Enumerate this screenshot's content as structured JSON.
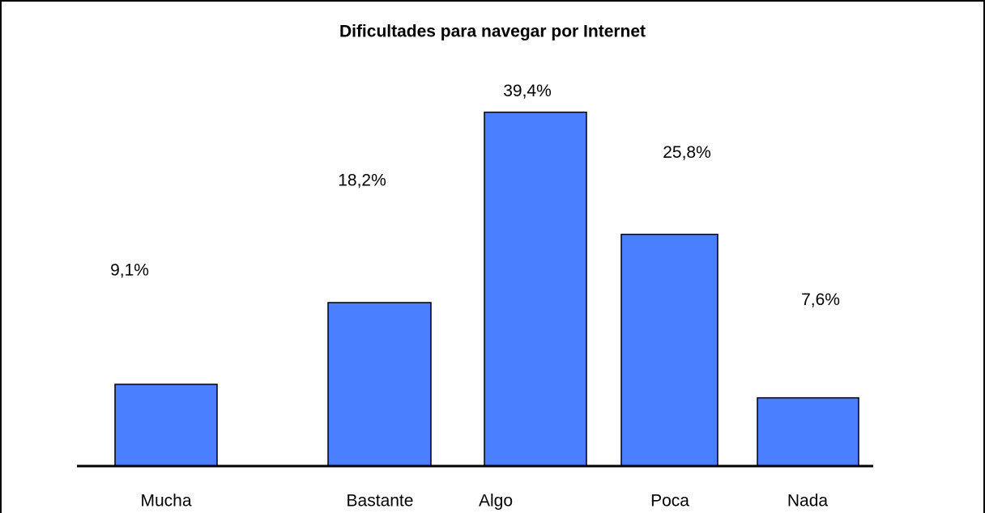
{
  "chart_data": {
    "type": "bar",
    "title": "Dificultades para navegar por Internet",
    "categories": [
      "Mucha",
      "Bastante",
      "Algo",
      "Poca",
      "Nada"
    ],
    "values": [
      9.1,
      18.2,
      39.4,
      25.8,
      7.6
    ],
    "value_labels": [
      "9,1%",
      "18,2%",
      "39,4%",
      "25,8%",
      "7,6%"
    ],
    "color": "#4a7fff"
  }
}
